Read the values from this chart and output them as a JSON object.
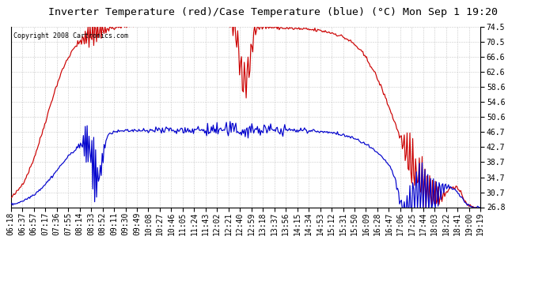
{
  "title": "Inverter Temperature (red)/Case Temperature (blue) (°C) Mon Sep 1 19:20",
  "copyright": "Copyright 2008 Cartronics.com",
  "yticks": [
    26.8,
    30.7,
    34.7,
    38.7,
    42.7,
    46.7,
    50.6,
    54.6,
    58.6,
    62.6,
    66.6,
    70.5,
    74.5
  ],
  "ymin": 26.8,
  "ymax": 74.5,
  "xtick_labels": [
    "06:18",
    "06:37",
    "06:57",
    "07:17",
    "07:36",
    "07:55",
    "08:14",
    "08:33",
    "08:52",
    "09:11",
    "09:30",
    "09:49",
    "10:08",
    "10:27",
    "10:46",
    "11:05",
    "11:24",
    "11:43",
    "12:02",
    "12:21",
    "12:40",
    "12:59",
    "13:18",
    "13:37",
    "13:56",
    "14:15",
    "14:34",
    "14:53",
    "15:12",
    "15:31",
    "15:50",
    "16:09",
    "16:28",
    "16:47",
    "17:06",
    "17:25",
    "17:44",
    "18:03",
    "18:22",
    "18:41",
    "19:00",
    "19:19"
  ],
  "background_color": "#ffffff",
  "plot_bg_color": "#ffffff",
  "grid_color": "#c8c8c8",
  "red_color": "#cc0000",
  "blue_color": "#0000cc",
  "title_fontsize": 9.5,
  "axis_fontsize": 7,
  "copyright_fontsize": 6
}
